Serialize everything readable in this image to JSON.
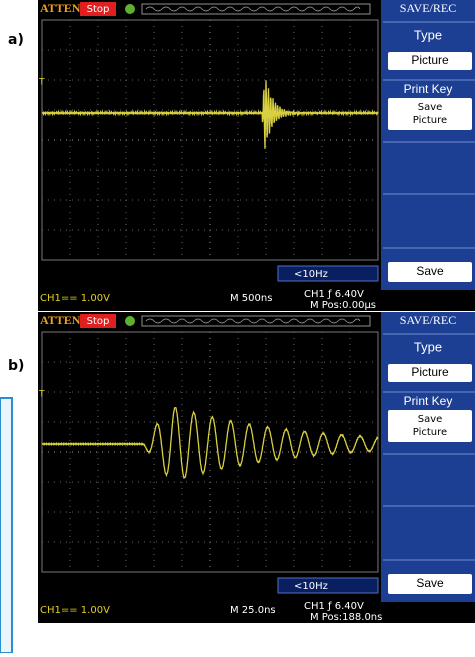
{
  "labels": {
    "a": "a)",
    "b": "b)"
  },
  "panels": [
    {
      "brand": "ATTEN",
      "state": "Stop",
      "menu_title": "SAVE/REC",
      "type_label": "Type",
      "type_value": "Picture",
      "print_key": "Print Key",
      "print_value": [
        "Save",
        "Picture"
      ],
      "save": "Save",
      "trigger": "<10Hz",
      "channel": "CH1== 1.00V",
      "timebase": "M 500ns",
      "trigger_level": "CH1 ƒ 6.40V",
      "position": "M Pos:0.00µs"
    },
    {
      "brand": "ATTEN",
      "state": "Stop",
      "menu_title": "SAVE/REC",
      "type_label": "Type",
      "type_value": "Picture",
      "print_key": "Print Key",
      "print_value": [
        "Save",
        "Picture"
      ],
      "save": "Save",
      "trigger": "<10Hz",
      "channel": "CH1== 1.00V",
      "timebase": "M 25.0ns",
      "trigger_level": "CH1 ƒ 6.40V",
      "position": "M Pos:188.0ns"
    }
  ]
}
